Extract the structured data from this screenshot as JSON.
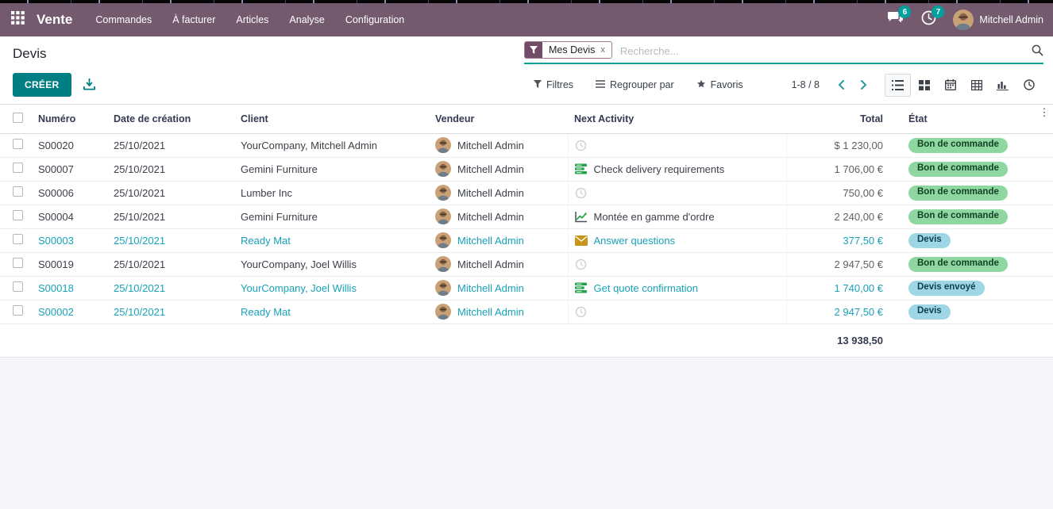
{
  "topbar": {
    "brand": "Vente",
    "menus": [
      "Commandes",
      "À facturer",
      "Articles",
      "Analyse",
      "Configuration"
    ],
    "messages_count": "6",
    "activities_count": "7",
    "user_name": "Mitchell Admin"
  },
  "control_panel": {
    "title": "Devis",
    "create_label": "CRÉER",
    "search": {
      "facet_label": "Mes Devis",
      "remove_facet": "x",
      "placeholder": "Recherche..."
    },
    "filters_label": "Filtres",
    "group_by_label": "Regrouper par",
    "favorites_label": "Favoris",
    "pager_range": "1-8 / 8"
  },
  "table": {
    "columns": [
      "Numéro",
      "Date de création",
      "Client",
      "Vendeur",
      "Next Activity",
      "Total",
      "État"
    ],
    "rows": [
      {
        "number": "S00020",
        "date": "25/10/2021",
        "client": "YourCompany, Mitchell Admin",
        "vendor": "Mitchell Admin",
        "activity_icon": "clock",
        "activity_label": "",
        "total": "$ 1 230,00",
        "state": "Bon de commande",
        "state_type": "success",
        "highlight": false
      },
      {
        "number": "S00007",
        "date": "25/10/2021",
        "client": "Gemini Furniture",
        "vendor": "Mitchell Admin",
        "activity_icon": "list",
        "activity_label": "Check delivery requirements",
        "total": "1 706,00 €",
        "state": "Bon de commande",
        "state_type": "success",
        "highlight": false
      },
      {
        "number": "S00006",
        "date": "25/10/2021",
        "client": "Lumber Inc",
        "vendor": "Mitchell Admin",
        "activity_icon": "clock",
        "activity_label": "",
        "total": "750,00 €",
        "state": "Bon de commande",
        "state_type": "success",
        "highlight": false
      },
      {
        "number": "S00004",
        "date": "25/10/2021",
        "client": "Gemini Furniture",
        "vendor": "Mitchell Admin",
        "activity_icon": "upsell",
        "activity_label": "Montée en gamme d'ordre",
        "total": "2 240,00 €",
        "state": "Bon de commande",
        "state_type": "success",
        "highlight": false
      },
      {
        "number": "S00003",
        "date": "25/10/2021",
        "client": "Ready Mat",
        "vendor": "Mitchell Admin",
        "activity_icon": "email",
        "activity_label": "Answer questions",
        "total": "377,50 €",
        "state": "Devis",
        "state_type": "info",
        "highlight": true
      },
      {
        "number": "S00019",
        "date": "25/10/2021",
        "client": "YourCompany, Joel Willis",
        "vendor": "Mitchell Admin",
        "activity_icon": "clock",
        "activity_label": "",
        "total": "2 947,50 €",
        "state": "Bon de commande",
        "state_type": "success",
        "highlight": false
      },
      {
        "number": "S00018",
        "date": "25/10/2021",
        "client": "YourCompany, Joel Willis",
        "vendor": "Mitchell Admin",
        "activity_icon": "list",
        "activity_label": "Get quote confirmation",
        "total": "1 740,00 €",
        "state": "Devis envoyé",
        "state_type": "info",
        "highlight": true
      },
      {
        "number": "S00002",
        "date": "25/10/2021",
        "client": "Ready Mat",
        "vendor": "Mitchell Admin",
        "activity_icon": "clock",
        "activity_label": "",
        "total": "2 947,50 €",
        "state": "Devis",
        "state_type": "info",
        "highlight": true
      }
    ],
    "footer_total": "13 938,50"
  },
  "colors": {
    "navbar": "#735a6e",
    "accent": "#017e84",
    "accent2": "#00a09d",
    "count_badge": "#00a09d",
    "highlight": "#17a2b8",
    "badge_success_bg": "#8fd7a0",
    "badge_info_bg": "#9fd6e5",
    "facet_purple": "#714b67"
  }
}
